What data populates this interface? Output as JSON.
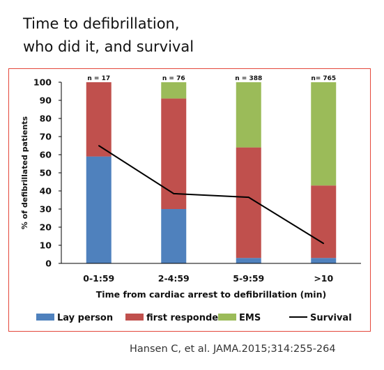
{
  "title": {
    "line1": "Time to defibrillation,",
    "line2": "who did it, and survival"
  },
  "citation": "Hansen C, et al. JAMA.2015;314:255-264",
  "chart_data": {
    "type": "bar",
    "stacked": true,
    "categories": [
      "0-1:59",
      "2-4:59",
      "5-9:59",
      ">10"
    ],
    "category_annotations": [
      "n = 17",
      "n = 76",
      "n = 388",
      "n= 765"
    ],
    "series": [
      {
        "name": "Lay person",
        "color": "#4f81bd",
        "values": [
          59,
          30,
          3,
          3
        ]
      },
      {
        "name": "first responder",
        "color": "#c0504d",
        "values": [
          41,
          61,
          61,
          40
        ]
      },
      {
        "name": "EMS",
        "color": "#9bbb59",
        "values": [
          0,
          9,
          36,
          57
        ]
      }
    ],
    "line_series": {
      "name": "Survival",
      "color": "#000000",
      "values": [
        65,
        38.5,
        36.5,
        11
      ]
    },
    "xlabel": "Time from cardiac arrest to defibrillation (min)",
    "ylabel": "% of defibrillated patients",
    "ylim": [
      0,
      100
    ],
    "yticks": [
      0,
      10,
      20,
      30,
      40,
      50,
      60,
      70,
      80,
      90,
      100
    ],
    "grid": false,
    "legend_position": "bottom"
  }
}
